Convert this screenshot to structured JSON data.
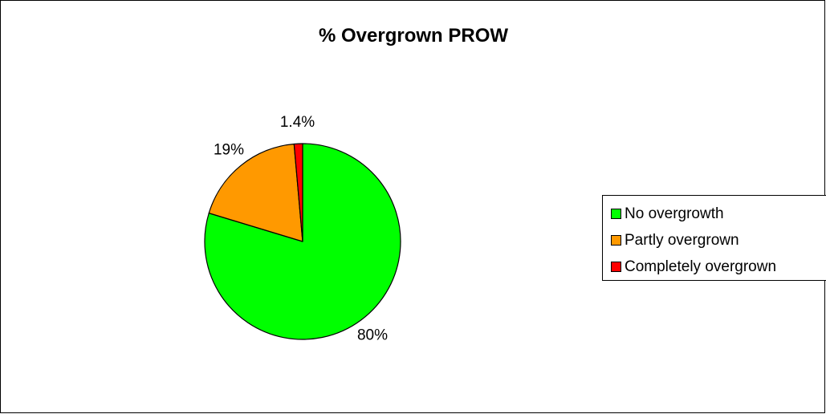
{
  "chart_data": {
    "type": "pie",
    "title": "% Overgrown PROW",
    "legend_position": "right",
    "slices": [
      {
        "name": "No overgrowth",
        "value": 80,
        "label": "80%",
        "color": "#00ff00"
      },
      {
        "name": "Partly overgrown",
        "value": 19,
        "label": "19%",
        "color": "#ff9900"
      },
      {
        "name": "Completely overgrown",
        "value": 1.4,
        "label": "1.4%",
        "color": "#ff0000"
      }
    ]
  }
}
